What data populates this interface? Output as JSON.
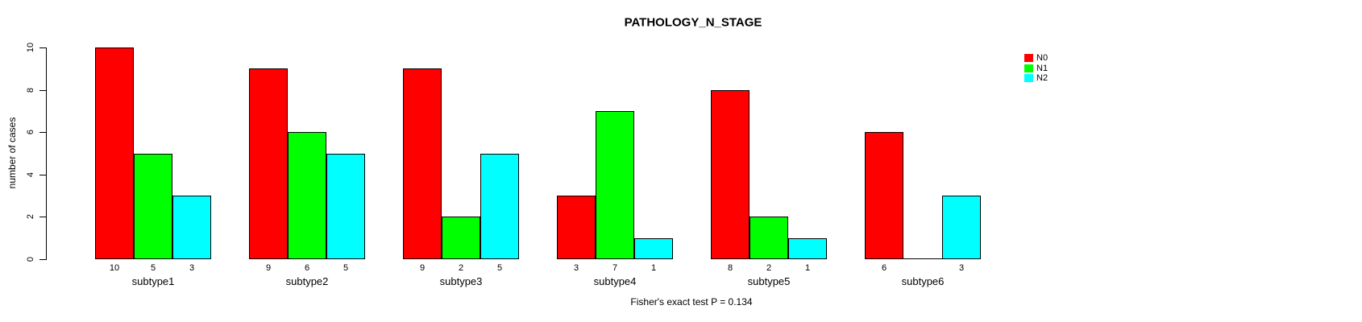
{
  "figure": {
    "title": "PATHOLOGY_N_STAGE",
    "y_axis_label": "number of cases",
    "footer": "Fisher's exact test P = 0.134"
  },
  "legend": {
    "position": "top-right",
    "items": [
      {
        "label": "N0",
        "color": "#ff0000"
      },
      {
        "label": "N1",
        "color": "#00ff00"
      },
      {
        "label": "N2",
        "color": "#00ffff"
      }
    ]
  },
  "chart_data": {
    "type": "bar",
    "title": "PATHOLOGY_N_STAGE",
    "xlabel": "",
    "ylabel": "number of cases",
    "categories": [
      "subtype1",
      "subtype2",
      "subtype3",
      "subtype4",
      "subtype5",
      "subtype6"
    ],
    "series": [
      {
        "name": "N0",
        "color": "#ff0000",
        "values": [
          10,
          9,
          9,
          3,
          8,
          6
        ]
      },
      {
        "name": "N1",
        "color": "#00ff00",
        "values": [
          5,
          6,
          2,
          7,
          2,
          0
        ]
      },
      {
        "name": "N2",
        "color": "#00ffff",
        "values": [
          3,
          5,
          5,
          1,
          1,
          3
        ]
      }
    ],
    "yticks": [
      0,
      2,
      4,
      6,
      8,
      10
    ],
    "ylim": [
      0,
      10
    ],
    "grid": false,
    "legend_position": "right",
    "bar_value_labels": "values printed below each bar; zero-value bars drawn as baseline segment with no label",
    "annotation": "Fisher's exact test P = 0.134"
  }
}
